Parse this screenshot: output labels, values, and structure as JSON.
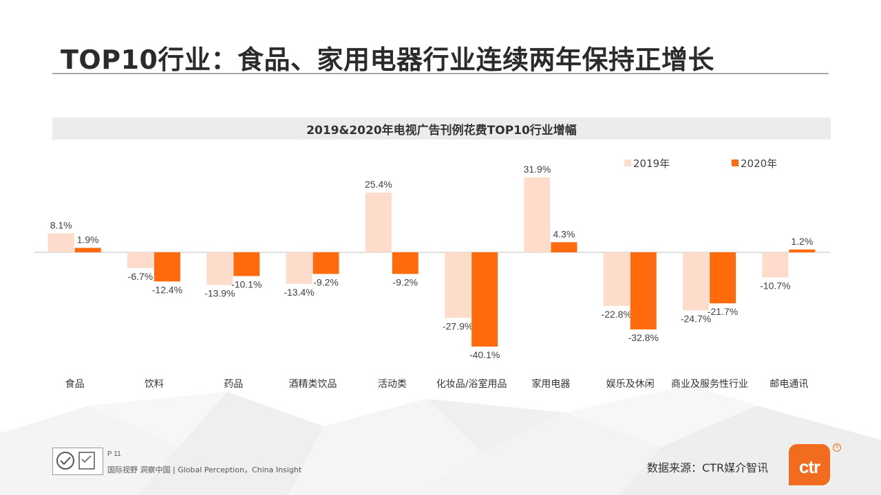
{
  "page": {
    "title": "TOP10行业：食品、家用电器行业连续两年保持正增长"
  },
  "chart_data": {
    "type": "bar",
    "title": "2019&2020年电视广告刊例花费TOP10行业增幅",
    "categories": [
      "食品",
      "饮料",
      "药品",
      "酒精类饮品",
      "活动类",
      "化妆品/浴室用品",
      "家用电器",
      "娱乐及休闲",
      "商业及服务性行业",
      "邮电通讯"
    ],
    "series": [
      {
        "name": "2019年",
        "color": "#fddccb",
        "values": [
          8.1,
          -6.7,
          -13.9,
          -13.4,
          25.4,
          -27.9,
          31.9,
          -22.8,
          -24.7,
          -10.7
        ],
        "labels": [
          "8.1%",
          "-6.7%",
          "-13.9%",
          "-13.4%",
          "25.4%",
          "-27.9%",
          "31.9%",
          "-22.8%",
          "-24.7%",
          "-10.7%"
        ]
      },
      {
        "name": "2020年",
        "color": "#ff6a0c",
        "values": [
          1.9,
          -12.4,
          -10.1,
          -9.2,
          -9.2,
          -40.1,
          4.3,
          -32.8,
          -21.7,
          1.2
        ],
        "labels": [
          "1.9%",
          "-12.4%",
          "-10.1%",
          "-9.2%",
          "-9.2%",
          "-40.1%",
          "4.3%",
          "-32.8%",
          "-21.7%",
          "1.2%"
        ]
      }
    ],
    "legend_position": "top-right",
    "grid": false
  },
  "footer": {
    "page_number": "P 11",
    "slogan": "国际视野  洞察中国 |  Global Perception，China Insight",
    "source": "数据来源：CTR媒介智讯",
    "brand": "ctr",
    "brand_mark": "®"
  }
}
